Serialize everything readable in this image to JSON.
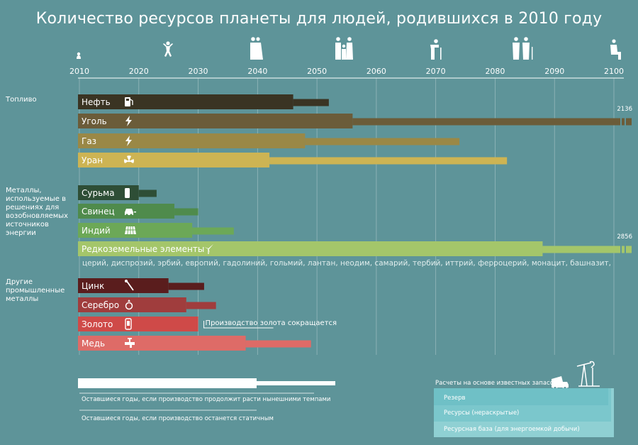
{
  "title": "Количество ресурсов планеты для людей, родившихся в 2010 году",
  "chart_data": {
    "type": "bar",
    "x_ticks": [
      2010,
      2020,
      2030,
      2040,
      2050,
      2060,
      2070,
      2080,
      2090,
      2100
    ],
    "xlim": [
      2010,
      2100
    ],
    "groups": [
      {
        "name": "Топливо",
        "items": [
          {
            "label": "Нефть",
            "icon": "fuel-pump-icon",
            "color": "#3a3423",
            "growth_end": 2046,
            "static_end": 2052
          },
          {
            "label": "Уголь",
            "icon": "lightning-icon",
            "color": "#6b5c39",
            "growth_end": 2056,
            "static_end": 2136,
            "overflow_label": "2136"
          },
          {
            "label": "Газ",
            "icon": "lightning-icon",
            "color": "#9a8846",
            "growth_end": 2048,
            "static_end": 2074
          },
          {
            "label": "Уран",
            "icon": "radiation-icon",
            "color": "#cdb453",
            "growth_end": 2042,
            "static_end": 2082
          }
        ]
      },
      {
        "name": "Металлы,\nиспользуемые в\nрешениях для\nвозобновляемых\nисточников\nэнергии",
        "items": [
          {
            "label": "Сурьма",
            "icon": "battery-icon",
            "color": "#2e4e36",
            "growth_end": 2020,
            "static_end": 2023
          },
          {
            "label": "Свинец",
            "icon": "car-icon",
            "color": "#4f8b4c",
            "growth_end": 2026,
            "static_end": 2030
          },
          {
            "label": "Индий",
            "icon": "solar-panel-icon",
            "color": "#6ca857",
            "growth_end": 2029,
            "static_end": 2036
          },
          {
            "label": "Редкоземельные элементы",
            "icon": "wind-turbine-icon",
            "color": "#a4c66a",
            "growth_end": 2088,
            "static_end": 2856,
            "overflow_label": "2856"
          }
        ],
        "note": "церий, диспрозий, эрбий, европий, гадолиний, гольмий, лантан, неодим, самарий, тербий, иттрий, ферроцерий, монацит, башназит,"
      },
      {
        "name": "Другие\nпромышленные\nметаллы",
        "items": [
          {
            "label": "Цинк",
            "icon": "wrench-icon",
            "color": "#5a1d1d",
            "growth_end": 2025,
            "static_end": 2031
          },
          {
            "label": "Серебро",
            "icon": "ring-icon",
            "color": "#a03d3d",
            "growth_end": 2028,
            "static_end": 2033
          },
          {
            "label": "Золото",
            "icon": "phone-icon",
            "color": "#cf4a48",
            "growth_end": 2030,
            "static_end": 2030
          },
          {
            "label": "Медь",
            "icon": "faucet-icon",
            "color": "#de6b67",
            "growth_end": 2038,
            "static_end": 2049
          }
        ]
      }
    ],
    "annotation": "Производство золота сокращается"
  },
  "legend": {
    "growth": "Оставшиеся годы, если производство продолжит расти нынешними темпами",
    "static": "Оставшиеся годы, если производство останется статичным",
    "box_title": "Расчеты на основе известных запасов:",
    "reserve": "Резерв",
    "resources": "Ресурсы (нераскрытые)",
    "base": "Ресурсная база (для энергоемкой добычи)"
  },
  "colors": {
    "background": "#5e9499",
    "axis": "#ffffff",
    "legend_reserve": "#6fc0c6",
    "legend_resources": "#7bc7cc",
    "legend_base": "#8fd0d3"
  }
}
